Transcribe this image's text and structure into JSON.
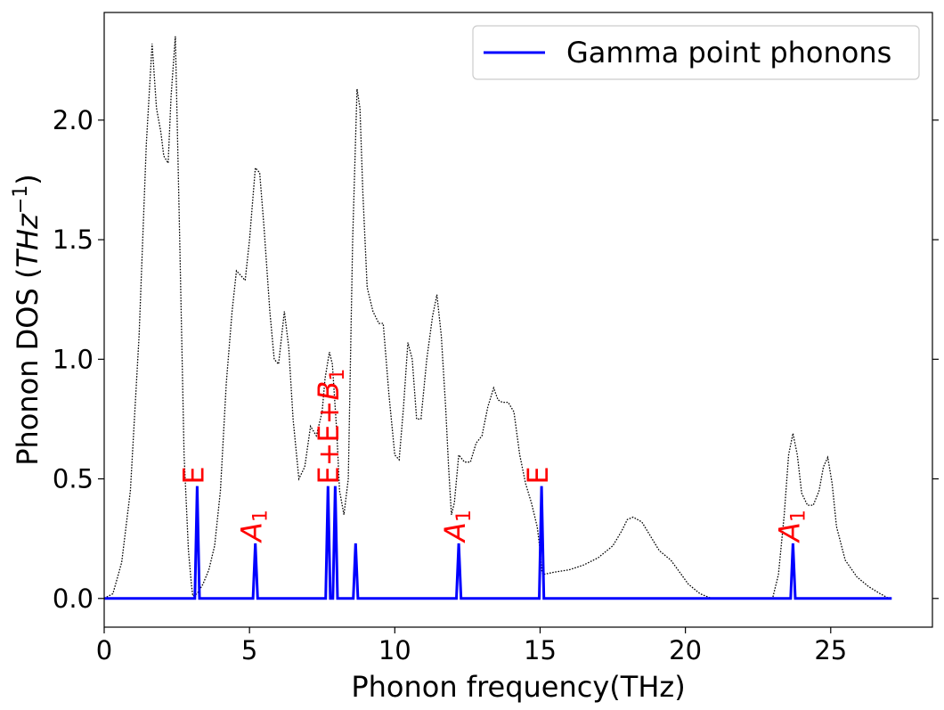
{
  "chart_data": {
    "type": "line",
    "xlabel": "Phonon frequency(THz)",
    "ylabel_main": "Phonon DOS (",
    "ylabel_math": "THz",
    "ylabel_exp": "−1",
    "ylabel_close": ")",
    "xlim": [
      0,
      28.5
    ],
    "ylim": [
      -0.12,
      2.45
    ],
    "xticks": [
      0,
      5,
      10,
      15,
      20,
      25
    ],
    "xtick_labels": [
      "0",
      "5",
      "10",
      "15",
      "20",
      "25"
    ],
    "yticks": [
      0.0,
      0.5,
      1.0,
      1.5,
      2.0
    ],
    "ytick_labels": [
      "0.0",
      "0.5",
      "1.0",
      "1.5",
      "2.0"
    ],
    "legend": {
      "placement": "top-right",
      "label": "Gamma point phonons"
    },
    "series": [
      {
        "name": "Gamma point phonons",
        "style": "solid",
        "color": "#0000ff",
        "baseline": 0.0,
        "x_end": 27.1,
        "peaks": [
          {
            "x": 3.2,
            "y": 0.47
          },
          {
            "x": 5.2,
            "y": 0.23
          },
          {
            "x": 7.7,
            "y": 0.47
          },
          {
            "x": 7.95,
            "y": 0.47
          },
          {
            "x": 8.65,
            "y": 0.23
          },
          {
            "x": 12.2,
            "y": 0.23
          },
          {
            "x": 15.05,
            "y": 0.47
          },
          {
            "x": 23.7,
            "y": 0.23
          }
        ]
      },
      {
        "style": "dotted",
        "color": "#000000",
        "x": [
          0.0,
          0.3,
          0.6,
          0.9,
          1.2,
          1.45,
          1.65,
          1.8,
          1.95,
          2.05,
          2.2,
          2.3,
          2.45,
          2.6,
          2.75,
          2.9,
          3.0,
          3.05,
          3.2,
          3.4,
          3.6,
          3.8,
          4.0,
          4.2,
          4.4,
          4.55,
          4.7,
          4.85,
          5.0,
          5.2,
          5.35,
          5.5,
          5.7,
          5.85,
          6.0,
          6.2,
          6.35,
          6.5,
          6.7,
          6.9,
          7.1,
          7.3,
          7.5,
          7.6,
          7.75,
          7.85,
          8.0,
          8.1,
          8.25,
          8.4,
          8.55,
          8.7,
          8.8,
          8.9,
          9.05,
          9.25,
          9.45,
          9.6,
          9.8,
          10.0,
          10.15,
          10.3,
          10.45,
          10.6,
          10.75,
          10.9,
          11.1,
          11.3,
          11.45,
          11.6,
          11.75,
          11.85,
          11.95,
          12.05,
          12.2,
          12.4,
          12.6,
          12.8,
          13.0,
          13.2,
          13.4,
          13.55,
          13.7,
          13.9,
          14.1,
          14.3,
          14.5,
          14.7,
          14.9,
          15.0,
          15.05,
          15.1,
          15.5,
          16.0,
          16.5,
          17.0,
          17.5,
          17.8,
          18.0,
          18.2,
          18.5,
          18.8,
          19.1,
          19.5,
          19.8,
          20.1,
          20.5,
          20.9,
          21.0,
          21.5,
          22.0,
          22.5,
          23.0,
          23.2,
          23.4,
          23.55,
          23.7,
          23.85,
          24.0,
          24.2,
          24.4,
          24.6,
          24.75,
          24.9,
          25.05,
          25.2,
          25.5,
          25.9,
          26.3,
          26.7,
          27.0
        ],
        "y": [
          0.0,
          0.02,
          0.15,
          0.45,
          1.1,
          1.9,
          2.32,
          2.05,
          1.95,
          1.85,
          1.82,
          2.1,
          2.35,
          1.5,
          0.6,
          0.2,
          0.06,
          0.01,
          0.02,
          0.06,
          0.12,
          0.22,
          0.45,
          0.9,
          1.2,
          1.37,
          1.35,
          1.33,
          1.5,
          1.8,
          1.78,
          1.55,
          1.2,
          1.0,
          0.98,
          1.2,
          1.05,
          0.75,
          0.5,
          0.55,
          0.72,
          0.68,
          0.78,
          0.92,
          1.03,
          0.98,
          0.7,
          0.45,
          0.35,
          0.5,
          1.5,
          2.13,
          2.05,
          1.7,
          1.3,
          1.2,
          1.15,
          1.15,
          0.85,
          0.6,
          0.58,
          0.8,
          1.07,
          1.0,
          0.75,
          0.75,
          1.0,
          1.18,
          1.27,
          1.1,
          0.8,
          0.55,
          0.35,
          0.4,
          0.6,
          0.57,
          0.57,
          0.65,
          0.68,
          0.8,
          0.88,
          0.83,
          0.82,
          0.82,
          0.78,
          0.6,
          0.48,
          0.4,
          0.3,
          0.2,
          0.12,
          0.1,
          0.11,
          0.12,
          0.14,
          0.17,
          0.22,
          0.28,
          0.33,
          0.34,
          0.32,
          0.26,
          0.2,
          0.16,
          0.11,
          0.06,
          0.02,
          0.0,
          0.0,
          0.0,
          0.0,
          0.0,
          0.0,
          0.1,
          0.35,
          0.6,
          0.69,
          0.6,
          0.44,
          0.39,
          0.39,
          0.45,
          0.55,
          0.59,
          0.48,
          0.3,
          0.16,
          0.09,
          0.05,
          0.02,
          0.0
        ]
      }
    ],
    "annotations": [
      {
        "x": 3.35,
        "y": 0.47,
        "parts": [
          [
            "E",
            false
          ]
        ]
      },
      {
        "x": 5.35,
        "y": 0.23,
        "parts": [
          [
            "A",
            true
          ],
          [
            "1",
            "sub"
          ]
        ]
      },
      {
        "x": 8.0,
        "y": 0.47,
        "parts": [
          [
            "E+E+",
            false
          ],
          [
            "B",
            true
          ],
          [
            "1",
            "sub"
          ]
        ]
      },
      {
        "x": 12.35,
        "y": 0.23,
        "parts": [
          [
            "A",
            true
          ],
          [
            "1",
            "sub"
          ]
        ]
      },
      {
        "x": 15.2,
        "y": 0.47,
        "parts": [
          [
            "E",
            false
          ]
        ]
      },
      {
        "x": 23.85,
        "y": 0.23,
        "parts": [
          [
            "A",
            true
          ],
          [
            "1",
            "sub"
          ]
        ]
      }
    ]
  }
}
